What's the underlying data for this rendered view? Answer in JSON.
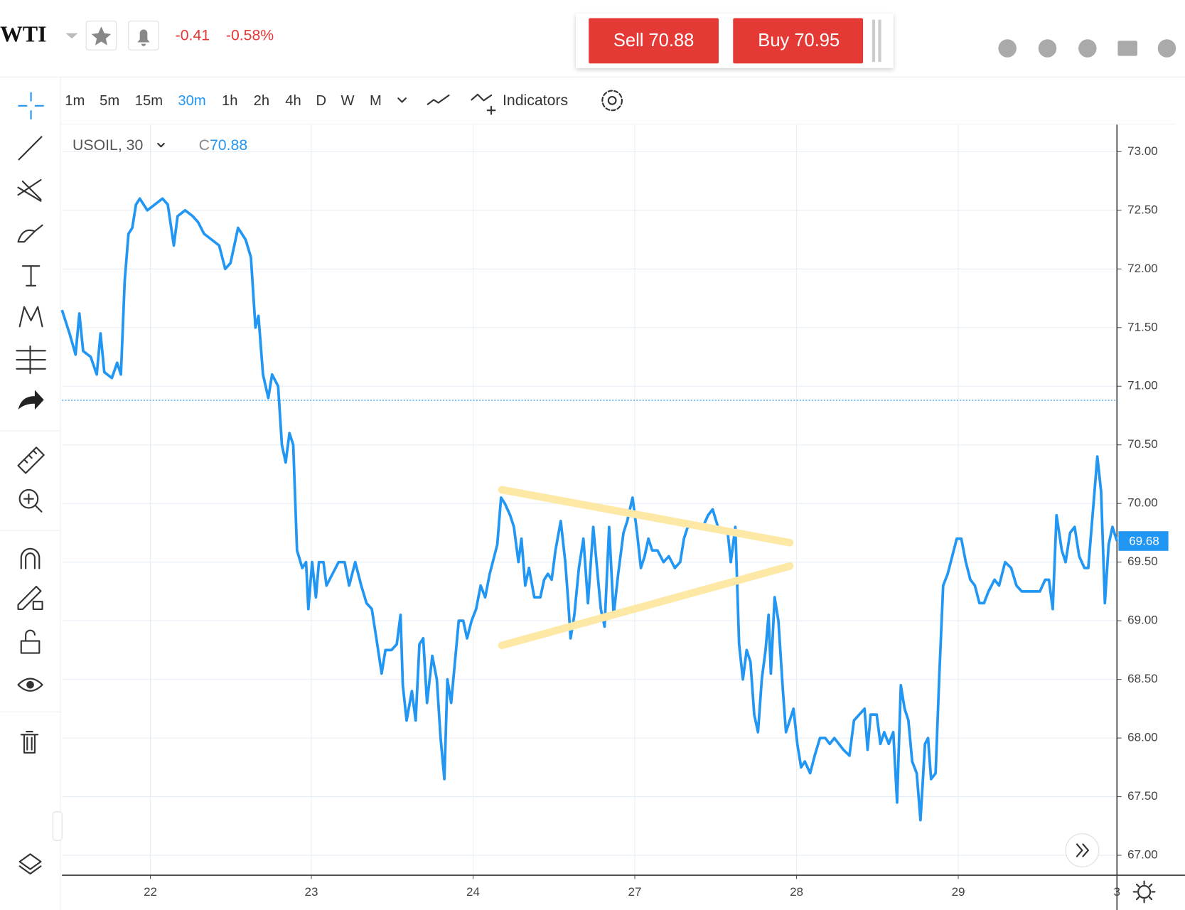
{
  "header": {
    "symbol": "WTI",
    "change": "-0.41",
    "change_percent": "-0.58%",
    "sell": "Sell 70.88",
    "buy": "Buy 70.95"
  },
  "toolbar": {
    "timeframes": [
      "1m",
      "5m",
      "15m",
      "30m",
      "1h",
      "2h",
      "4h",
      "D",
      "W",
      "M"
    ],
    "indicators": "Indicators"
  },
  "legend": {
    "instrument": "USOIL, 30",
    "close_prefix": "C"
  },
  "chart_data": {
    "type": "line",
    "x": [
      0,
      10,
      18,
      23,
      28,
      38,
      46,
      51,
      56,
      66,
      73,
      78,
      83,
      88,
      93,
      98,
      103,
      113,
      123,
      133,
      140,
      148,
      153,
      163,
      173,
      180,
      188,
      198,
      208,
      216,
      223,
      233,
      243,
      250,
      256,
      260,
      266,
      273,
      278,
      286,
      291,
      296,
      301,
      306,
      311,
      318,
      323,
      326,
      331,
      336,
      340,
      346,
      350,
      358,
      366,
      374,
      380,
      388,
      396,
      403,
      410,
      416,
      423,
      428,
      436,
      443,
      448,
      451,
      456,
      463,
      468,
      473,
      478,
      483,
      490,
      496,
      501,
      506,
      510,
      515,
      520,
      525,
      531,
      536,
      542,
      548,
      554,
      560,
      566,
      570,
      576,
      581,
      586,
      593,
      598,
      604,
      608,
      613,
      618,
      625,
      633,
      638,
      643,
      648,
      653,
      660,
      666,
      670,
      673,
      678,
      684,
      690,
      696,
      703,
      708,
      713,
      718,
      724,
      730,
      736,
      743,
      748,
      755,
      761,
      766,
      771,
      776,
      781,
      788,
      796,
      803,
      811,
      818,
      823,
      828,
      838,
      848,
      855,
      861,
      868,
      876,
      881,
      885,
      891,
      896,
      901,
      906,
      911,
      916,
      921,
      926,
      931,
      935,
      938,
      943,
      948,
      954,
      958,
      963,
      968,
      973,
      978,
      983,
      990,
      996,
      1003,
      1010,
      1016,
      1022,
      1028,
      1034,
      1042,
      1048,
      1055,
      1062,
      1066,
      1070,
      1078,
      1083,
      1088,
      1094,
      1100,
      1105,
      1110,
      1115,
      1120,
      1125,
      1131,
      1136,
      1142,
      1146,
      1150,
      1156,
      1161,
      1166,
      1172,
      1178,
      1184,
      1190,
      1196,
      1202,
      1208,
      1214,
      1220,
      1226,
      1234,
      1240,
      1248,
      1256,
      1263,
      1270,
      1278,
      1286,
      1294,
      1301,
      1306,
      1311,
      1316,
      1323,
      1328,
      1334,
      1340,
      1346,
      1353,
      1358,
      1365,
      1370,
      1375,
      1380,
      1385,
      1390,
      1396
    ],
    "series": [
      {
        "name": "USOIL",
        "color": "#2196f3",
        "values": [
          71.65,
          71.45,
          71.27,
          71.62,
          71.3,
          71.25,
          71.1,
          71.45,
          71.12,
          71.07,
          71.2,
          71.1,
          71.9,
          72.3,
          72.35,
          72.55,
          72.6,
          72.5,
          72.55,
          72.6,
          72.55,
          72.2,
          72.45,
          72.5,
          72.45,
          72.4,
          72.3,
          72.25,
          72.2,
          72.0,
          72.05,
          72.35,
          72.25,
          72.1,
          71.5,
          71.6,
          71.1,
          70.9,
          71.1,
          71.0,
          70.5,
          70.35,
          70.6,
          70.5,
          69.6,
          69.45,
          69.5,
          69.1,
          69.5,
          69.2,
          69.5,
          69.5,
          69.3,
          69.4,
          69.5,
          69.5,
          69.3,
          69.5,
          69.3,
          69.15,
          69.1,
          68.85,
          68.55,
          68.75,
          68.75,
          68.8,
          69.05,
          68.45,
          68.15,
          68.4,
          68.15,
          68.8,
          68.85,
          68.3,
          68.7,
          68.5,
          68.0,
          67.65,
          68.5,
          68.3,
          68.65,
          69.0,
          69.0,
          68.85,
          69.0,
          69.1,
          69.3,
          69.2,
          69.4,
          69.5,
          69.65,
          70.05,
          70.0,
          69.9,
          69.8,
          69.5,
          69.7,
          69.3,
          69.45,
          69.2,
          69.2,
          69.35,
          69.4,
          69.35,
          69.6,
          69.85,
          69.5,
          69.15,
          68.85,
          69.05,
          69.45,
          69.7,
          69.15,
          69.8,
          69.45,
          69.1,
          68.95,
          69.8,
          69.05,
          69.4,
          69.75,
          69.85,
          70.05,
          69.75,
          69.45,
          69.55,
          69.7,
          69.6,
          69.6,
          69.5,
          69.55,
          69.45,
          69.5,
          69.7,
          69.8,
          69.8,
          69.8,
          69.9,
          69.95,
          69.8,
          69.75,
          69.75,
          69.5,
          69.8,
          68.8,
          68.5,
          68.75,
          68.65,
          68.2,
          68.05,
          68.5,
          68.75,
          69.05,
          68.55,
          69.2,
          69.0,
          68.4,
          68.05,
          68.15,
          68.25,
          67.95,
          67.75,
          67.8,
          67.7,
          67.85,
          68.0,
          68.0,
          67.95,
          68.0,
          67.95,
          67.9,
          67.85,
          68.15,
          68.2,
          68.25,
          67.9,
          68.2,
          68.2,
          67.95,
          68.05,
          67.95,
          68.05,
          67.45,
          68.45,
          68.25,
          68.15,
          67.8,
          67.7,
          67.3,
          67.95,
          68.0,
          67.65,
          67.7,
          68.55,
          69.3,
          69.4,
          69.55,
          69.7,
          69.7,
          69.5,
          69.35,
          69.3,
          69.15,
          69.15,
          69.25,
          69.35,
          69.3,
          69.5,
          69.45,
          69.3,
          69.25,
          69.25,
          69.25,
          69.25,
          69.35,
          69.35,
          69.1,
          69.9,
          69.6,
          69.5,
          69.75,
          69.8,
          69.55,
          69.45,
          69.45,
          70.0,
          70.4,
          70.1,
          69.15,
          69.65,
          69.8,
          69.68
        ]
      }
    ],
    "close_line": 70.88,
    "last_price": 69.68,
    "xlim": [
      0,
      1396
    ],
    "xticks": [
      {
        "value": 117,
        "label": "22"
      },
      {
        "value": 330,
        "label": "23"
      },
      {
        "value": 544,
        "label": "24"
      },
      {
        "value": 758,
        "label": "27"
      },
      {
        "value": 972,
        "label": "28"
      },
      {
        "value": 1186,
        "label": "29"
      },
      {
        "value": 1396,
        "label": "3"
      }
    ],
    "ylim": [
      66.83,
      73.23
    ],
    "yticks": [
      {
        "value": 67,
        "label": "67.00"
      },
      {
        "value": 67.5,
        "label": "67.50"
      },
      {
        "value": 68,
        "label": "68.00"
      },
      {
        "value": 68.5,
        "label": "68.50"
      },
      {
        "value": 69,
        "label": "69.00"
      },
      {
        "value": 69.5,
        "label": "69.50"
      },
      {
        "value": 70,
        "label": "70.00"
      },
      {
        "value": 70.5,
        "label": "70.50"
      },
      {
        "value": 71,
        "label": "71.00"
      },
      {
        "value": 71.5,
        "label": "71.50"
      },
      {
        "value": 72,
        "label": "72.00"
      },
      {
        "value": 72.5,
        "label": "72.50"
      },
      {
        "value": 73,
        "label": "73.00"
      }
    ],
    "grid": true
  }
}
